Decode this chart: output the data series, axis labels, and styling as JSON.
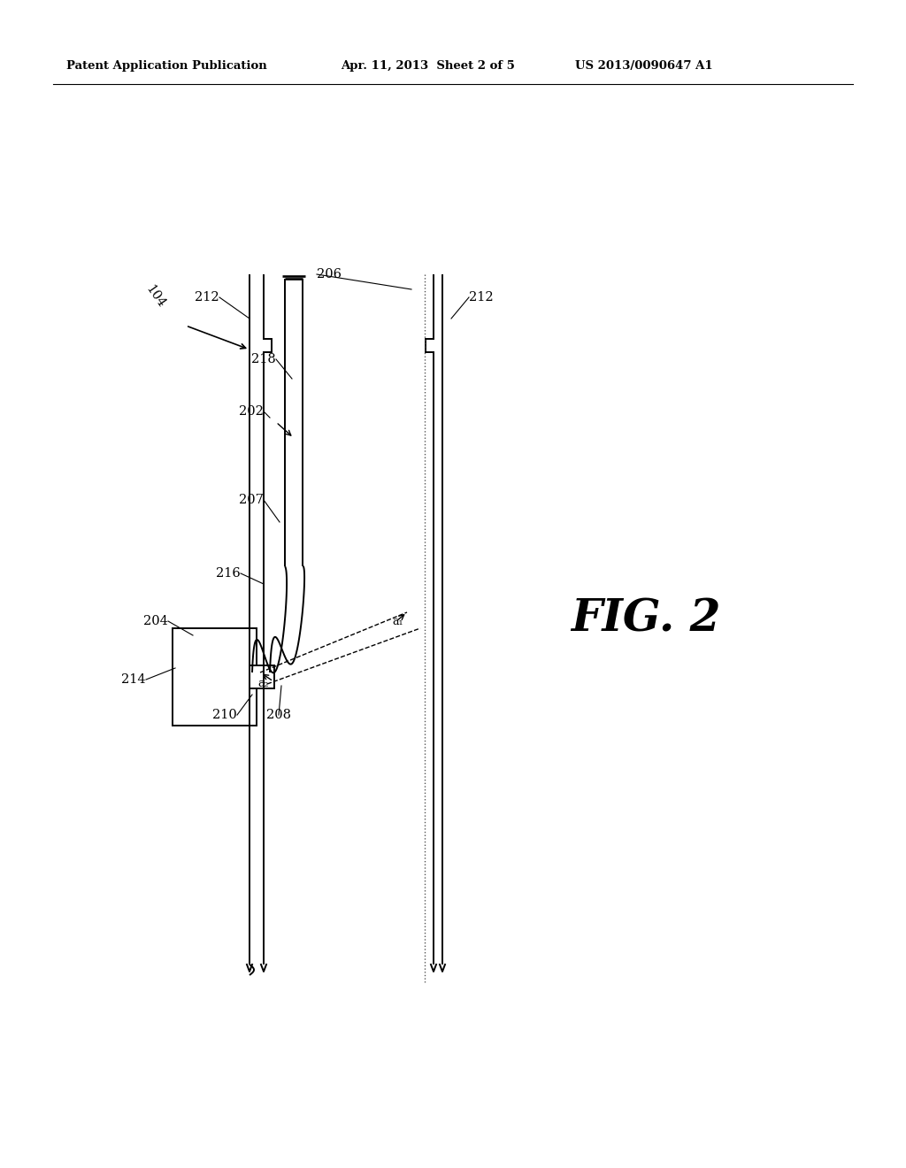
{
  "header_left": "Patent Application Publication",
  "header_mid": "Apr. 11, 2013  Sheet 2 of 5",
  "header_right": "US 2013/0090647 A1",
  "fig_label": "FIG. 2",
  "background_color": "#ffffff",
  "line_color": "#000000",
  "lw": 1.4
}
